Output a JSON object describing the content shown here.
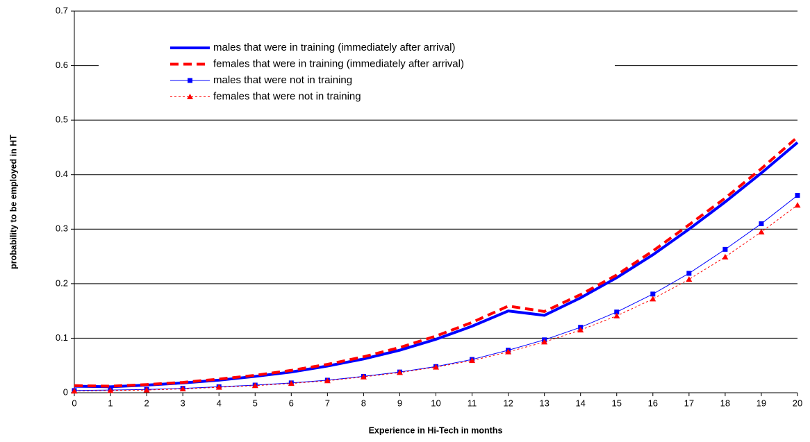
{
  "chart_data": {
    "type": "line",
    "x_label": "Experience in Hi-Tech in months",
    "y_label": "probability to be employed in HT",
    "x": [
      0,
      1,
      2,
      3,
      4,
      5,
      6,
      7,
      8,
      9,
      10,
      11,
      12,
      13,
      14,
      15,
      16,
      17,
      18,
      19,
      20
    ],
    "xlim": [
      0,
      20
    ],
    "xticks": [
      0,
      1,
      2,
      3,
      4,
      5,
      6,
      7,
      8,
      9,
      10,
      11,
      12,
      13,
      14,
      15,
      16,
      17,
      18,
      19,
      20
    ],
    "ylim": [
      0,
      0.7
    ],
    "yticks": [
      0,
      0.1,
      0.2,
      0.3,
      0.4,
      0.5,
      0.6,
      0.7
    ],
    "grid": true,
    "legend": "top",
    "series": [
      {
        "name": "males that were in training (immediately after arrival)",
        "color": "#0000ff",
        "line_width": 4,
        "dash": "solid",
        "marker": "none",
        "values": [
          0.012,
          0.011,
          0.014,
          0.018,
          0.023,
          0.03,
          0.038,
          0.049,
          0.062,
          0.078,
          0.098,
          0.122,
          0.15,
          0.142,
          0.174,
          0.211,
          0.253,
          0.3,
          0.35,
          0.403,
          0.459
        ]
      },
      {
        "name": "females that were in training (immediately after arrival)",
        "color": "#ff0000",
        "line_width": 4,
        "dash": "dashed",
        "marker": "none",
        "values": [
          0.013,
          0.012,
          0.015,
          0.019,
          0.025,
          0.032,
          0.041,
          0.052,
          0.066,
          0.083,
          0.104,
          0.129,
          0.159,
          0.149,
          0.18,
          0.216,
          0.26,
          0.308,
          0.357,
          0.411,
          0.469
        ]
      },
      {
        "name": "males that were not in training",
        "color": "#0000ff",
        "line_width": 1,
        "dash": "solid",
        "marker": "square",
        "values": [
          0.004,
          0.005,
          0.006,
          0.008,
          0.011,
          0.014,
          0.018,
          0.023,
          0.03,
          0.038,
          0.048,
          0.061,
          0.078,
          0.097,
          0.12,
          0.148,
          0.181,
          0.219,
          0.263,
          0.31,
          0.362
        ]
      },
      {
        "name": "females that were not in training",
        "color": "#ff0000",
        "line_width": 1,
        "dash": "dotted",
        "marker": "triangle",
        "values": [
          0.003,
          0.004,
          0.005,
          0.007,
          0.01,
          0.013,
          0.017,
          0.022,
          0.029,
          0.037,
          0.047,
          0.059,
          0.075,
          0.093,
          0.115,
          0.141,
          0.172,
          0.208,
          0.249,
          0.295,
          0.344
        ]
      }
    ]
  }
}
